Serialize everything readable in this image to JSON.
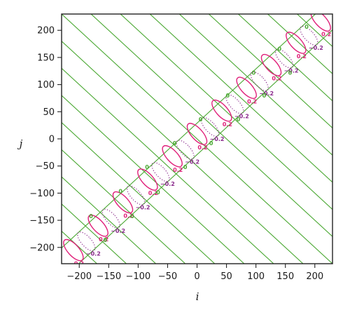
{
  "chart_data": {
    "type": "contour",
    "xlabel": "i",
    "ylabel": "j",
    "xlim": [
      -230,
      230
    ],
    "ylim": [
      -230,
      230
    ],
    "x_ticks": [
      -200,
      -150,
      -100,
      -50,
      0,
      50,
      100,
      150,
      200
    ],
    "y_ticks": [
      -200,
      -150,
      -100,
      -50,
      0,
      50,
      100,
      150,
      200
    ],
    "x_tick_labels": [
      "−200",
      "−150",
      "−100",
      "−50",
      "0",
      "50",
      "100",
      "150",
      "200"
    ],
    "y_tick_labels": [
      "−200",
      "−150",
      "−100",
      "−50",
      "0",
      "50",
      "100",
      "150",
      "200"
    ],
    "grid": false,
    "levels": [
      {
        "level": "0",
        "label": "0",
        "color": "#4aa832",
        "style": "solid"
      },
      {
        "level": "0.2",
        "label": "0.2",
        "color": "#e0207a",
        "style": "solid"
      },
      {
        "level": "-0.2",
        "label": "−0.2",
        "color": "#8a2a8c",
        "style": "dotted"
      }
    ],
    "zero_lines_anti_diagonal_intercepts": [
      -400,
      -350,
      -300,
      -250,
      -200,
      -150,
      -100,
      -50,
      0,
      50,
      100,
      150,
      200,
      250,
      300,
      350,
      400
    ],
    "zero_lines_diagonal_offsets": [
      -29,
      29
    ],
    "positive_lobe_centers": [
      [
        -210,
        -205
      ],
      [
        -168,
        -160
      ],
      [
        -126,
        -117
      ],
      [
        -84,
        -75
      ],
      [
        -42,
        -32
      ],
      [
        0,
        9
      ],
      [
        42,
        52
      ],
      [
        84,
        94
      ],
      [
        126,
        136
      ],
      [
        168,
        177
      ],
      [
        210,
        218
      ]
    ],
    "negative_lobe_centers": [
      [
        -188,
        -189
      ],
      [
        -146,
        -147
      ],
      [
        -104,
        -104
      ],
      [
        -62,
        -61
      ],
      [
        -20,
        -20
      ],
      [
        22,
        22
      ],
      [
        64,
        64
      ],
      [
        106,
        106
      ],
      [
        148,
        148
      ],
      [
        190,
        190
      ]
    ],
    "zero_label_positions": [
      [
        -180,
        -142
      ],
      [
        -130,
        -96
      ],
      [
        -85,
        -52
      ],
      [
        -38,
        -8
      ],
      [
        6,
        36
      ],
      [
        52,
        80
      ],
      [
        96,
        122
      ],
      [
        140,
        166
      ],
      [
        186,
        207
      ],
      [
        -156,
        -186
      ],
      [
        -110,
        -142
      ],
      [
        -66,
        -98
      ],
      [
        -20,
        -52
      ],
      [
        24,
        -8
      ],
      [
        70,
        36
      ],
      [
        114,
        80
      ],
      [
        158,
        122
      ]
    ]
  }
}
